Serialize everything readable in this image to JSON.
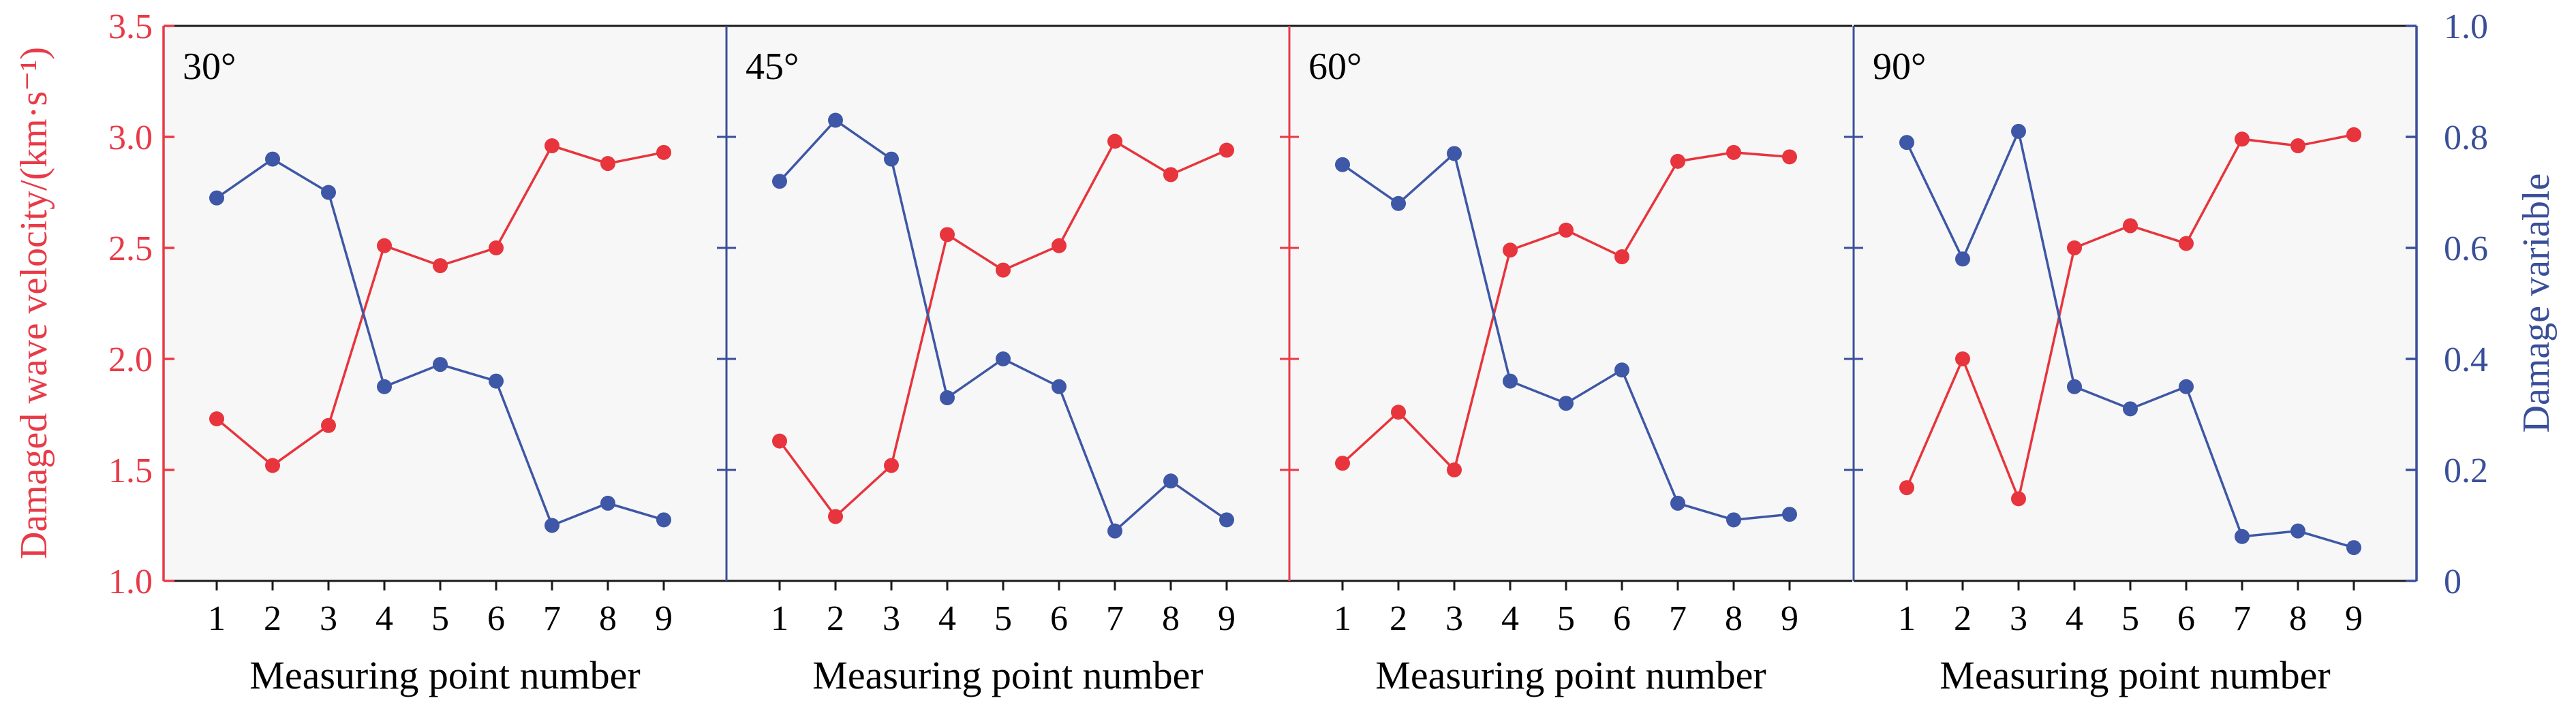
{
  "colors": {
    "velocity": "#e8343c",
    "damage": "#3e57a6",
    "axis_left": "#e83a47",
    "axis_right": "#3a4f99",
    "frame": "#1a1a1a",
    "panel_bg": "#f7f7f7"
  },
  "chart_data": {
    "type": "line",
    "layout": "four panels side by side, shared left and right axes",
    "x": [
      1,
      2,
      3,
      4,
      5,
      6,
      7,
      8,
      9
    ],
    "x_tick_labels": [
      "1",
      "2",
      "3",
      "4",
      "5",
      "6",
      "7",
      "8",
      "9"
    ],
    "xlabel": "Measuring point number",
    "ylabel_left": "Damaged wave velocity/(km·s⁻¹)",
    "ylabel_right": "Damage variable",
    "ylim_left": [
      1.0,
      3.5
    ],
    "ylim_right": [
      0,
      1.0
    ],
    "yticks_left": [
      "1.0",
      "1.5",
      "2.0",
      "2.5",
      "3.0",
      "3.5"
    ],
    "yticks_right": [
      "0",
      "0.2",
      "0.4",
      "0.6",
      "0.8",
      "1.0"
    ],
    "grid": false,
    "panels": [
      {
        "label": "30°",
        "velocity": [
          1.73,
          1.52,
          1.7,
          2.51,
          2.42,
          2.5,
          2.96,
          2.88,
          2.93
        ],
        "damage": [
          0.69,
          0.76,
          0.7,
          0.35,
          0.39,
          0.36,
          0.1,
          0.14,
          0.11
        ]
      },
      {
        "label": "45°",
        "velocity": [
          1.63,
          1.29,
          1.52,
          2.56,
          2.4,
          2.51,
          2.98,
          2.83,
          2.94
        ],
        "damage": [
          0.72,
          0.83,
          0.76,
          0.33,
          0.4,
          0.35,
          0.09,
          0.18,
          0.11
        ]
      },
      {
        "label": "60°",
        "velocity": [
          1.53,
          1.76,
          1.5,
          2.49,
          2.58,
          2.46,
          2.89,
          2.93,
          2.91
        ],
        "damage": [
          0.75,
          0.68,
          0.77,
          0.36,
          0.32,
          0.38,
          0.14,
          0.11,
          0.12
        ]
      },
      {
        "label": "90°",
        "velocity": [
          1.42,
          2.0,
          1.37,
          2.5,
          2.6,
          2.52,
          2.99,
          2.96,
          3.01
        ],
        "damage": [
          0.79,
          0.58,
          0.81,
          0.35,
          0.31,
          0.35,
          0.08,
          0.09,
          0.06
        ]
      }
    ]
  }
}
